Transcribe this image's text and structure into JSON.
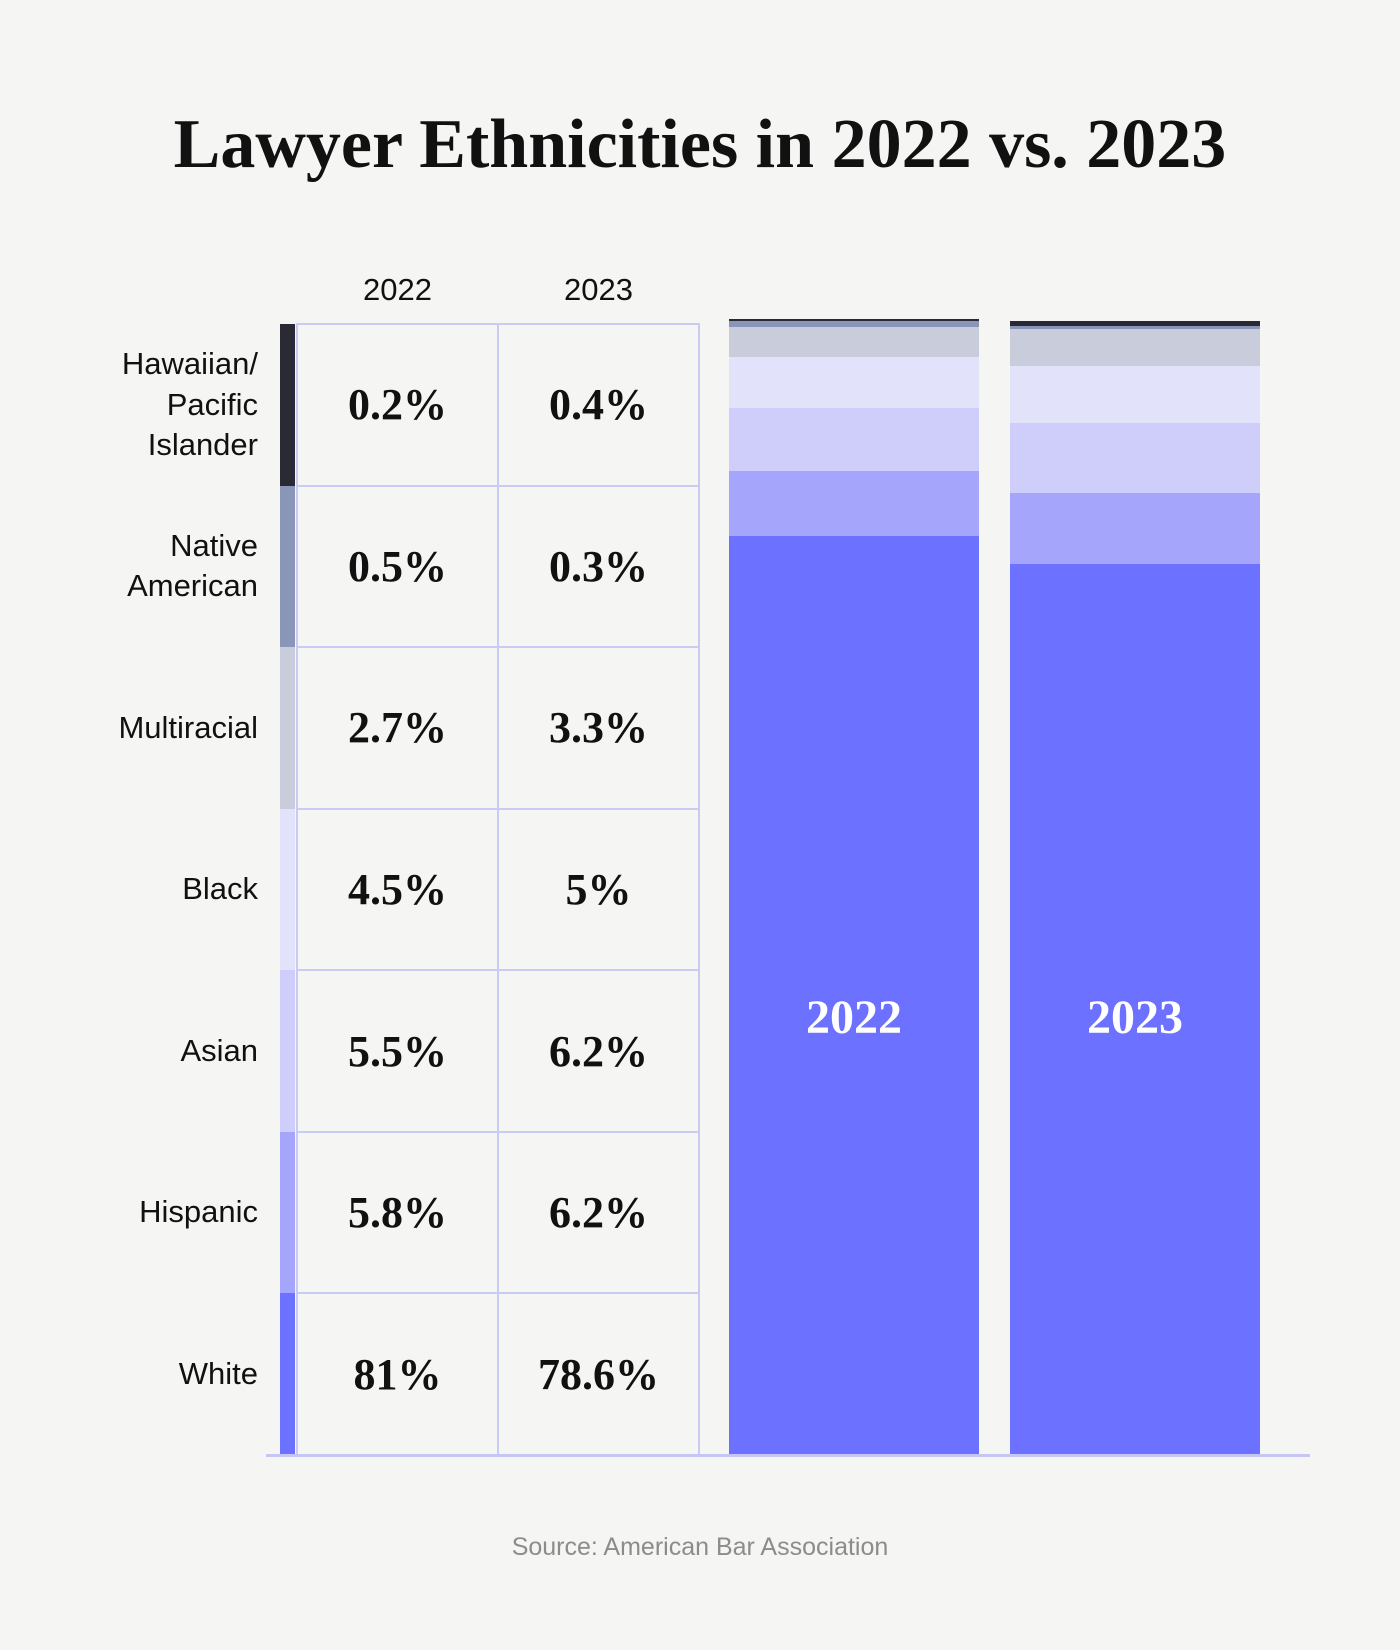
{
  "chart_data": {
    "type": "stacked_bar",
    "title": "Lawyer Ethnicities in 2022 vs. 2023",
    "source": "Source: American Bar Association",
    "categories": [
      "2022",
      "2023"
    ],
    "ylim": [
      0,
      100
    ],
    "series": [
      {
        "name": "Hawaiian/ Pacific Islander",
        "color": "#2a2a35",
        "values": [
          0.2,
          0.4
        ],
        "value_labels": [
          "0.2%",
          "0.4%"
        ]
      },
      {
        "name": "Native American",
        "color": "#8a96b8",
        "values": [
          0.5,
          0.3
        ],
        "value_labels": [
          "0.5%",
          "0.3%"
        ]
      },
      {
        "name": "Multiracial",
        "color": "#c9ccdb",
        "values": [
          2.7,
          3.3
        ],
        "value_labels": [
          "2.7%",
          "3.3%"
        ]
      },
      {
        "name": "Black",
        "color": "#e3e2fb",
        "values": [
          4.5,
          5
        ],
        "value_labels": [
          "4.5%",
          "5%"
        ]
      },
      {
        "name": "Asian",
        "color": "#cfcefa",
        "values": [
          5.5,
          6.2
        ],
        "value_labels": [
          "5.5%",
          "6.2%"
        ]
      },
      {
        "name": "Hispanic",
        "color": "#a5a6fb",
        "values": [
          5.8,
          6.2
        ],
        "value_labels": [
          "5.8%",
          "6.2%"
        ]
      },
      {
        "name": "White",
        "color": "#6c72ff",
        "values": [
          81,
          78.6
        ],
        "value_labels": [
          "81%",
          "78.6%"
        ]
      }
    ]
  }
}
